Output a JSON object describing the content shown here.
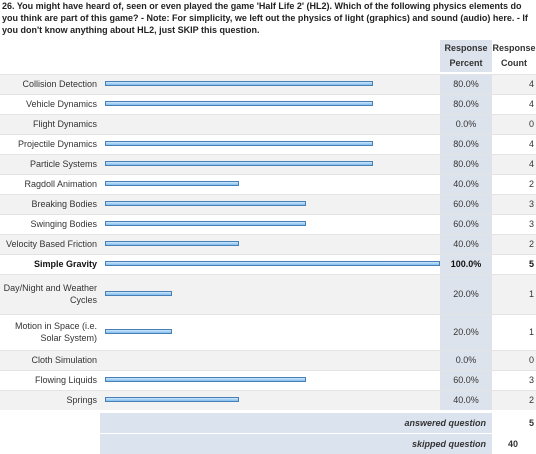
{
  "question": "26. You might have heard of, seen or even played the game 'Half Life 2' (HL2). Which of the following physics elements do you think are part of this game? - Note: For simplicity, we left out the physics of light (graphics) and sound (audio) here. - If you don't know anything about HL2, just SKIP this question.",
  "headers": {
    "percent": "Response Percent",
    "count": "Response Count"
  },
  "percent_range": [
    0,
    100
  ],
  "rows": [
    {
      "label": "Collision Detection",
      "percent": 80,
      "percent_label": "80.0%",
      "count": 4
    },
    {
      "label": "Vehicle Dynamics",
      "percent": 80,
      "percent_label": "80.0%",
      "count": 4
    },
    {
      "label": "Flight Dynamics",
      "percent": 0,
      "percent_label": "0.0%",
      "count": 0
    },
    {
      "label": "Projectile Dynamics",
      "percent": 80,
      "percent_label": "80.0%",
      "count": 4
    },
    {
      "label": "Particle Systems",
      "percent": 80,
      "percent_label": "80.0%",
      "count": 4
    },
    {
      "label": "Ragdoll Animation",
      "percent": 40,
      "percent_label": "40.0%",
      "count": 2
    },
    {
      "label": "Breaking Bodies",
      "percent": 60,
      "percent_label": "60.0%",
      "count": 3
    },
    {
      "label": "Swinging Bodies",
      "percent": 60,
      "percent_label": "60.0%",
      "count": 3
    },
    {
      "label": "Velocity Based Friction",
      "percent": 40,
      "percent_label": "40.0%",
      "count": 2
    },
    {
      "label": "Simple Gravity",
      "percent": 100,
      "percent_label": "100.0%",
      "count": 5,
      "bold": true
    },
    {
      "label": "Day/Night and Weather Cycles",
      "percent": 20,
      "percent_label": "20.0%",
      "count": 1
    },
    {
      "label": "Motion in Space (i.e. Solar System)",
      "percent": 20,
      "percent_label": "20.0%",
      "count": 1
    },
    {
      "label": "Cloth Simulation",
      "percent": 0,
      "percent_label": "0.0%",
      "count": 0
    },
    {
      "label": "Flowing Liquids",
      "percent": 60,
      "percent_label": "60.0%",
      "count": 3
    },
    {
      "label": "Springs",
      "percent": 40,
      "percent_label": "40.0%",
      "count": 2
    }
  ],
  "footer": [
    {
      "label": "answered question",
      "count": 5
    },
    {
      "label": "skipped question",
      "count": 40
    }
  ]
}
